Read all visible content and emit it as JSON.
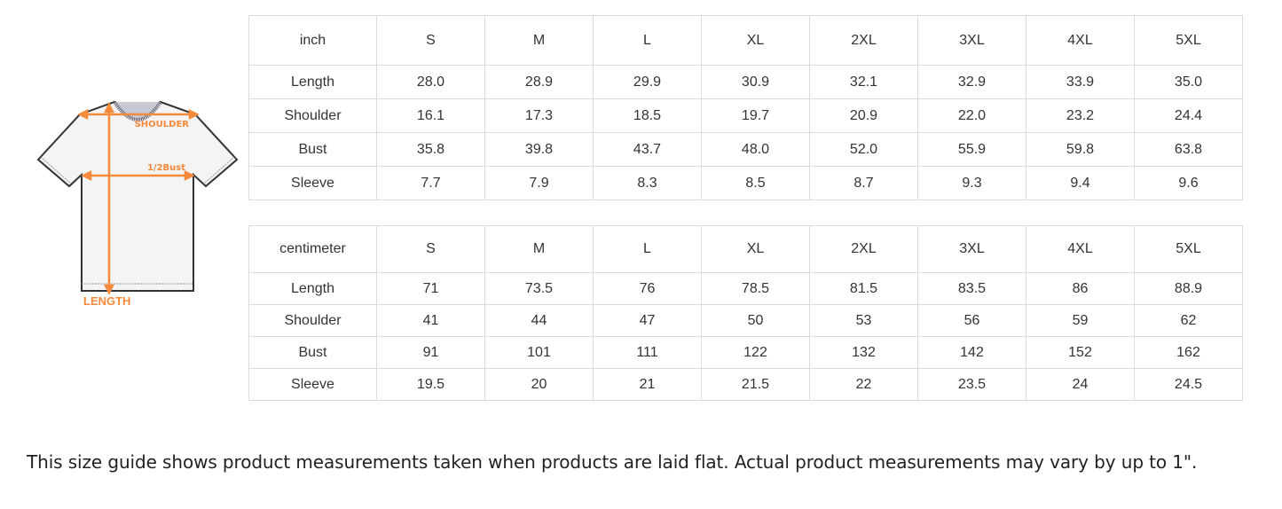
{
  "illustration": {
    "labels": {
      "shoulder": "SHOULDER",
      "bust": "1/2Bust",
      "length": "LENGTH"
    },
    "accent": "#f7893b"
  },
  "inch_table": {
    "unit": "inch",
    "sizes": [
      "S",
      "M",
      "L",
      "XL",
      "2XL",
      "3XL",
      "4XL",
      "5XL"
    ],
    "rows": [
      {
        "label": "Length",
        "values": [
          "28.0",
          "28.9",
          "29.9",
          "30.9",
          "32.1",
          "32.9",
          "33.9",
          "35.0"
        ]
      },
      {
        "label": "Shoulder",
        "values": [
          "16.1",
          "17.3",
          "18.5",
          "19.7",
          "20.9",
          "22.0",
          "23.2",
          "24.4"
        ]
      },
      {
        "label": "Bust",
        "values": [
          "35.8",
          "39.8",
          "43.7",
          "48.0",
          "52.0",
          "55.9",
          "59.8",
          "63.8"
        ]
      },
      {
        "label": "Sleeve",
        "values": [
          "7.7",
          "7.9",
          "8.3",
          "8.5",
          "8.7",
          "9.3",
          "9.4",
          "9.6"
        ]
      }
    ]
  },
  "cm_table": {
    "unit": "centimeter",
    "sizes": [
      "S",
      "M",
      "L",
      "XL",
      "2XL",
      "3XL",
      "4XL",
      "5XL"
    ],
    "rows": [
      {
        "label": "Length",
        "values": [
          "71",
          "73.5",
          "76",
          "78.5",
          "81.5",
          "83.5",
          "86",
          "88.9"
        ]
      },
      {
        "label": "Shoulder",
        "values": [
          "41",
          "44",
          "47",
          "50",
          "53",
          "56",
          "59",
          "62"
        ]
      },
      {
        "label": "Bust",
        "values": [
          "91",
          "101",
          "111",
          "122",
          "132",
          "142",
          "152",
          "162"
        ]
      },
      {
        "label": "Sleeve",
        "values": [
          "19.5",
          "20",
          "21",
          "21.5",
          "22",
          "23.5",
          "24",
          "24.5"
        ]
      }
    ]
  },
  "note": "This size guide shows product measurements taken when products are laid flat. Actual product measurements may vary by up to 1\"."
}
